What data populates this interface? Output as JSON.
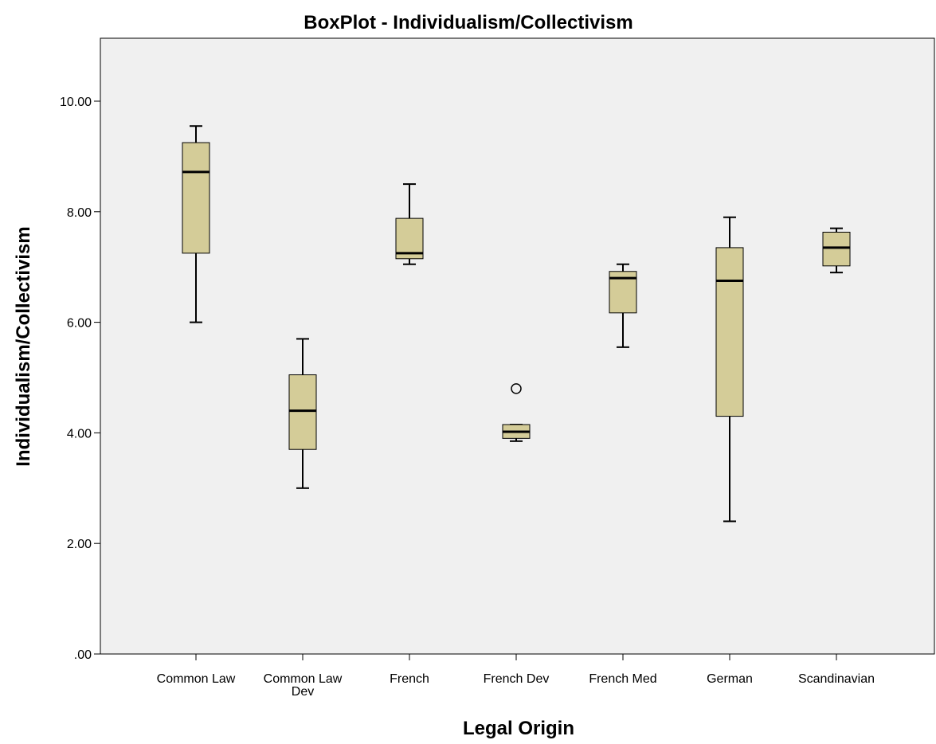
{
  "chart_data": {
    "type": "boxplot",
    "title": "BoxPlot - Individualism/Collectivism",
    "xlabel": "Legal Origin",
    "ylabel": "Individualism/Collectivism",
    "ylim": [
      0,
      11
    ],
    "yticks": [
      0,
      2,
      4,
      6,
      8,
      10
    ],
    "ytick_labels": [
      ".00",
      "2.00",
      "4.00",
      "6.00",
      "8.00",
      "10.00"
    ],
    "grid": false,
    "colors": {
      "plot_background": "#f0f0f0",
      "box_fill": "#d4cc98",
      "stroke": "#000000"
    },
    "categories": [
      {
        "label_lines": [
          "Common Law"
        ],
        "min": 6.0,
        "q1": 7.25,
        "median": 8.72,
        "q3": 9.25,
        "max": 9.55,
        "outliers": []
      },
      {
        "label_lines": [
          "Common Law",
          "Dev"
        ],
        "min": 3.0,
        "q1": 3.7,
        "median": 4.4,
        "q3": 5.05,
        "max": 5.7,
        "outliers": []
      },
      {
        "label_lines": [
          "French"
        ],
        "min": 7.05,
        "q1": 7.15,
        "median": 7.25,
        "q3": 7.88,
        "max": 8.5,
        "outliers": []
      },
      {
        "label_lines": [
          "French Dev"
        ],
        "min": 3.85,
        "q1": 3.9,
        "median": 4.02,
        "q3": 4.15,
        "max": 4.15,
        "outliers": [
          4.8
        ]
      },
      {
        "label_lines": [
          "French Med"
        ],
        "min": 5.55,
        "q1": 6.17,
        "median": 6.8,
        "q3": 6.92,
        "max": 7.05,
        "outliers": []
      },
      {
        "label_lines": [
          "German"
        ],
        "min": 2.4,
        "q1": 4.3,
        "median": 6.75,
        "q3": 7.35,
        "max": 7.9,
        "outliers": []
      },
      {
        "label_lines": [
          "Scandinavian"
        ],
        "min": 6.9,
        "q1": 7.02,
        "median": 7.35,
        "q3": 7.63,
        "max": 7.7,
        "outliers": []
      }
    ]
  }
}
